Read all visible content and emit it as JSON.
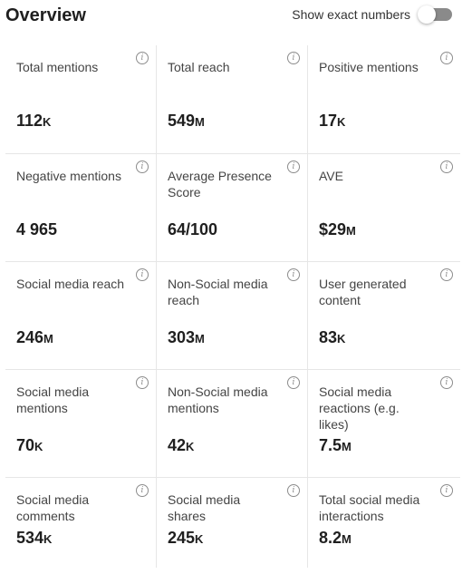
{
  "header": {
    "title": "Overview",
    "toggle_label": "Show exact numbers"
  },
  "info_glyph": "i",
  "metrics": [
    {
      "label": "Total mentions",
      "value": "112",
      "unit": "K"
    },
    {
      "label": "Total reach",
      "value": "549",
      "unit": "M"
    },
    {
      "label": "Positive mentions",
      "value": "17",
      "unit": "K"
    },
    {
      "label": "Negative mentions",
      "value": "4 965",
      "unit": ""
    },
    {
      "label": "Average Presence Score",
      "value": "64/100",
      "unit": ""
    },
    {
      "label": "AVE",
      "value": "$29",
      "unit": "M"
    },
    {
      "label": "Social media reach",
      "value": "246",
      "unit": "M"
    },
    {
      "label": "Non-Social media reach",
      "value": "303",
      "unit": "M"
    },
    {
      "label": "User generated content",
      "value": "83",
      "unit": "K"
    },
    {
      "label": "Social media mentions",
      "value": "70",
      "unit": "K"
    },
    {
      "label": "Non-Social media mentions",
      "value": "42",
      "unit": "K"
    },
    {
      "label": "Social media reactions (e.g. likes)",
      "value": "7.5",
      "unit": "M"
    },
    {
      "label": "Social media comments",
      "value": "534",
      "unit": "K"
    },
    {
      "label": "Social media shares",
      "value": "245",
      "unit": "K"
    },
    {
      "label": "Total social media interactions",
      "value": "8.2",
      "unit": "M"
    }
  ]
}
